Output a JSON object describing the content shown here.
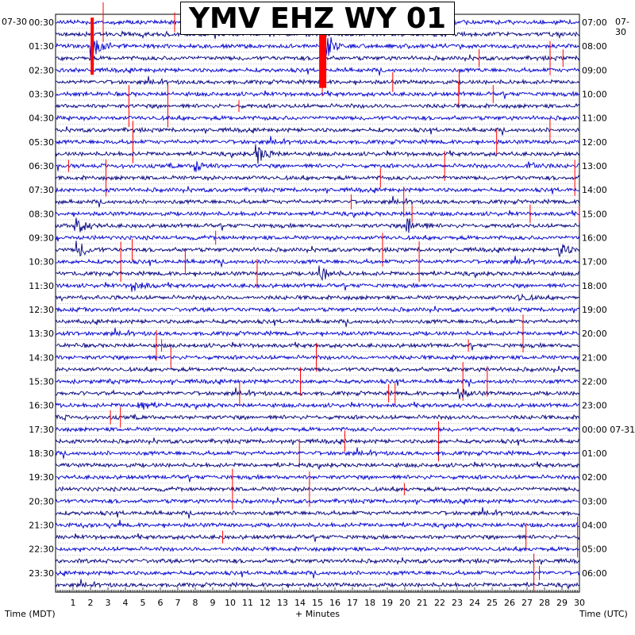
{
  "chart_data": {
    "type": "line",
    "title": "YMV EHZ WY 01",
    "xlabel": "+ Minutes",
    "left_axis_label": "Time (MDT)",
    "right_axis_label": "Time (UTC)",
    "xlim": [
      0,
      30
    ],
    "x_ticks": [
      "1",
      "2",
      "3",
      "4",
      "5",
      "6",
      "7",
      "8",
      "9",
      "10",
      "11",
      "12",
      "13",
      "14",
      "15",
      "16",
      "17",
      "18",
      "19",
      "20",
      "21",
      "22",
      "23",
      "24",
      "25",
      "26",
      "27",
      "28",
      "29",
      "30"
    ],
    "left_date": "07-30",
    "right_date": "07-30",
    "left_ticks": [
      "00:30",
      "01:30",
      "02:30",
      "03:30",
      "04:30",
      "05:30",
      "06:30",
      "07:30",
      "08:30",
      "09:30",
      "10:30",
      "11:30",
      "12:30",
      "13:30",
      "14:30",
      "15:30",
      "16:30",
      "17:30",
      "18:30",
      "19:30",
      "20:30",
      "21:30",
      "22:30",
      "23:30"
    ],
    "right_ticks": [
      "07:00",
      "08:00",
      "09:00",
      "10:00",
      "11:00",
      "12:00",
      "13:00",
      "14:00",
      "15:00",
      "16:00",
      "17:00",
      "18:00",
      "19:00",
      "20:00",
      "21:00",
      "22:00",
      "23:00",
      "00:00 07-31",
      "01:00",
      "02:00",
      "03:00",
      "04:00",
      "05:00",
      "06:00"
    ],
    "trace_count": 48,
    "trace_colors": [
      "#0000cd",
      "#00007d"
    ],
    "clip_color": "#ff0000",
    "events": [
      {
        "trace": 2,
        "minute": 15.3,
        "amp": 3.5
      },
      {
        "trace": 2,
        "minute": 2.1,
        "amp": 2.4
      },
      {
        "trace": 11,
        "minute": 11.6,
        "amp": 1.8
      },
      {
        "trace": 12,
        "minute": 8.0,
        "amp": 1.2
      },
      {
        "trace": 17,
        "minute": 20.2,
        "amp": 1.8
      },
      {
        "trace": 17,
        "minute": 1.2,
        "amp": 1.6
      },
      {
        "trace": 19,
        "minute": 1.3,
        "amp": 1.6
      },
      {
        "trace": 19,
        "minute": 28.9,
        "amp": 1.2
      },
      {
        "trace": 21,
        "minute": 15.2,
        "amp": 1.5
      },
      {
        "trace": 22,
        "minute": 4.5,
        "amp": 1.1
      },
      {
        "trace": 32,
        "minute": 4.8,
        "amp": 1.2
      },
      {
        "trace": 31,
        "minute": 23.1,
        "amp": 1.0
      },
      {
        "trace": 23,
        "minute": 26.5,
        "amp": 0.8
      },
      {
        "trace": 12,
        "minute": 27.1,
        "amp": 1.0
      }
    ]
  }
}
